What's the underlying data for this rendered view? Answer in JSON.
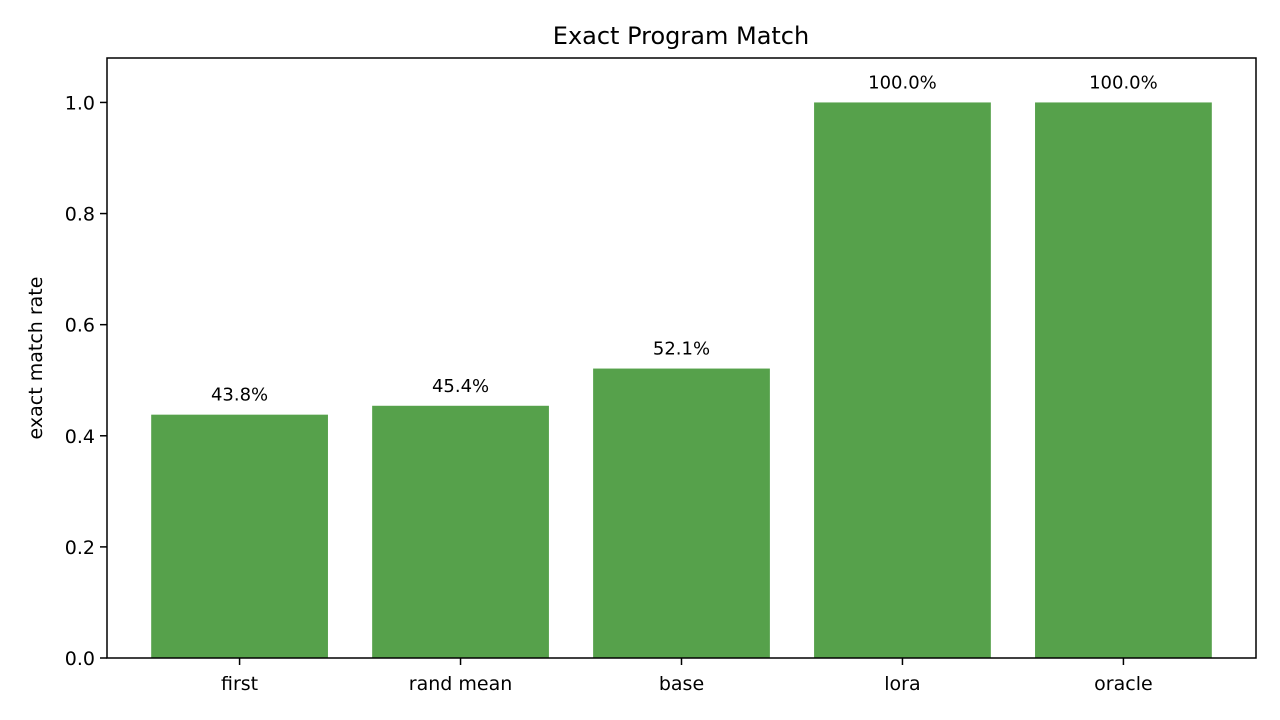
{
  "chart_data": {
    "type": "bar",
    "title": "Exact Program Match",
    "xlabel": "",
    "ylabel": "exact match rate",
    "categories": [
      "first",
      "rand mean",
      "base",
      "lora",
      "oracle"
    ],
    "values": [
      0.438,
      0.454,
      0.521,
      1.0,
      1.0
    ],
    "value_labels": [
      "43.8%",
      "45.4%",
      "52.1%",
      "100.0%",
      "100.0%"
    ],
    "ylim": [
      0,
      1.08
    ],
    "yticks": [
      0.0,
      0.2,
      0.4,
      0.6,
      0.8,
      1.0
    ],
    "ytick_labels": [
      "0.0",
      "0.2",
      "0.4",
      "0.6",
      "0.8",
      "1.0"
    ],
    "grid": false,
    "legend": "none",
    "colors": {
      "bar": "#56a14b",
      "axis": "#000000",
      "background": "#ffffff"
    }
  }
}
